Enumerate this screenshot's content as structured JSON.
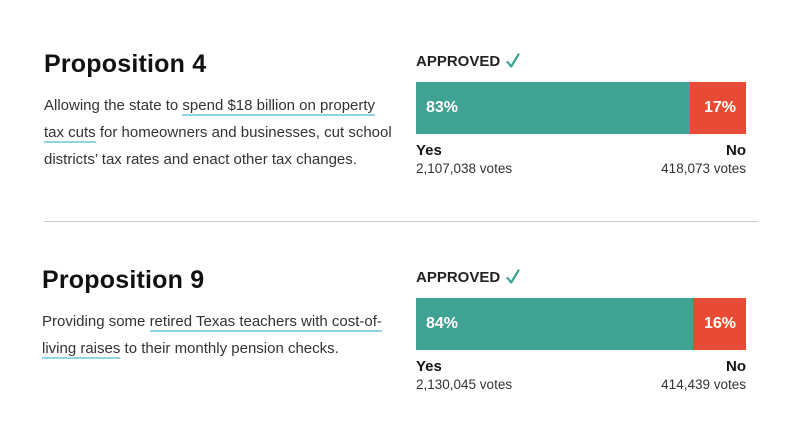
{
  "colors": {
    "yes": "#3fa292",
    "no": "#e84b33",
    "check": "#3fa292",
    "link_underline": "#8fd3e6"
  },
  "propositions": [
    {
      "title": "Proposition 4",
      "desc_prefix": "Allowing the state to ",
      "desc_link": "spend $18 billion on property tax cuts",
      "desc_suffix": " for homeowners and businesses, cut school districts’ tax rates and enact other tax changes.",
      "status": "APPROVED",
      "status_icon": "check-icon",
      "yes": {
        "label": "Yes",
        "percent": 83,
        "percent_label": "83%",
        "votes": "2,107,038 votes"
      },
      "no": {
        "label": "No",
        "percent": 17,
        "percent_label": "17%",
        "votes": "418,073 votes"
      }
    },
    {
      "title": "Proposition 9",
      "desc_prefix": "Providing some ",
      "desc_link": "retired Texas teachers with cost-of-living raises",
      "desc_suffix": " to their monthly pension checks.",
      "status": "APPROVED",
      "status_icon": "check-icon",
      "yes": {
        "label": "Yes",
        "percent": 84,
        "percent_label": "84%",
        "votes": "2,130,045 votes"
      },
      "no": {
        "label": "No",
        "percent": 16,
        "percent_label": "16%",
        "votes": "414,439 votes"
      }
    }
  ]
}
